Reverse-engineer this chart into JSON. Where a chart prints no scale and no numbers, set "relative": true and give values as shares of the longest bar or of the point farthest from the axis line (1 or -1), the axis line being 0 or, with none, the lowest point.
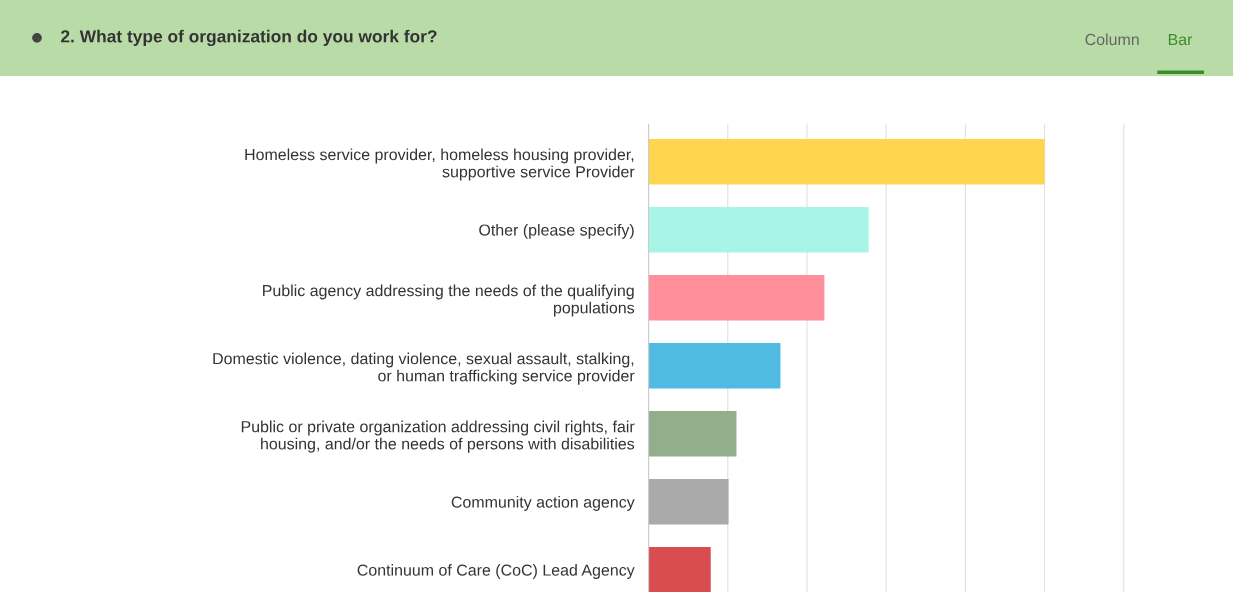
{
  "chart_data": {
    "type": "bar",
    "orientation": "horizontal",
    "relative": true,
    "grid": "x",
    "title": "2. What type of organization do you work for?",
    "annotations": [
      "Column",
      "Bar"
    ],
    "categories": [
      "Homeless service provider, homeless housing provider,\nsupportive service Provider",
      "Other (please specify)",
      "Public agency addressing the needs of the qualifying\npopulations",
      "Domestic violence, dating violence, sexual assault, stalking,\nor human trafficking service provider",
      "Public or private organization addressing civil rights, fair\nhousing, and/or the needs of persons with disabilities",
      "Community action agency",
      "Continuum of Care (CoC) Lead Agency"
    ],
    "values": [
      1,
      0.556,
      0.444,
      0.333,
      0.222,
      0.202,
      0.157
    ],
    "colors": [
      "#ffd54f",
      "#a7f5e6",
      "#ff8f9a",
      "#4fbbe3",
      "#93ae8a",
      "#aaaaaa",
      "#d94c4f"
    ]
  }
}
